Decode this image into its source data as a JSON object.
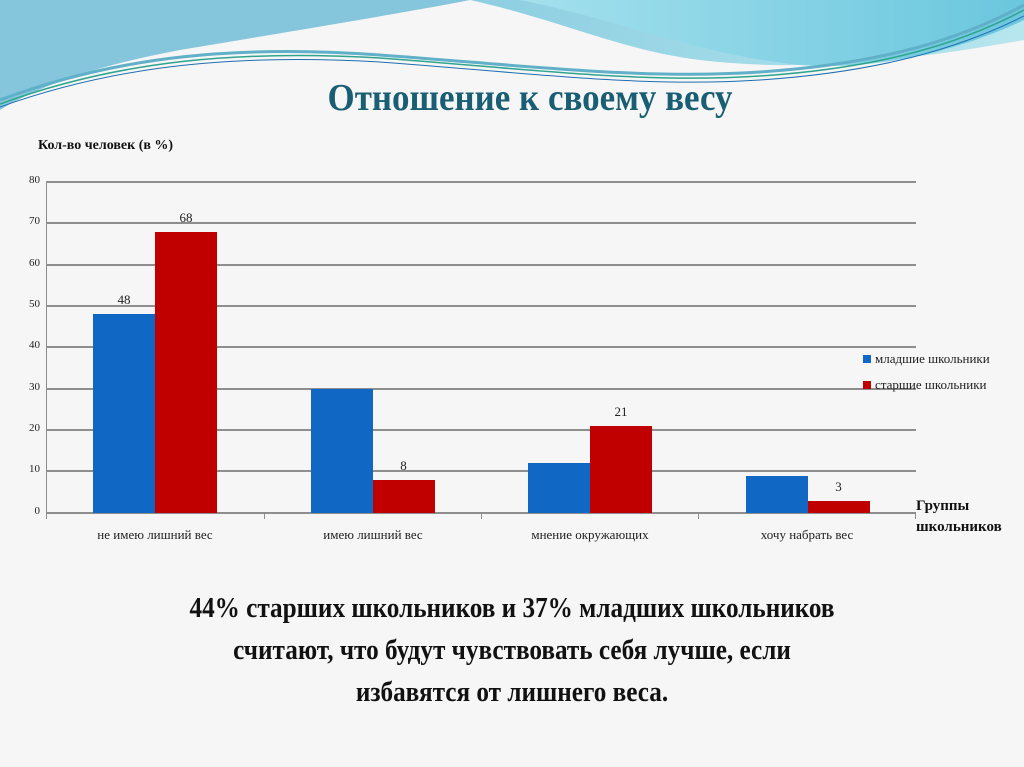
{
  "slide": {
    "title": "Отношение к своему весу",
    "caption_lines": [
      "44% старших школьников и 37% младших школьников",
      "считают, что будут чувствовать себя лучше, если",
      "избавятся от лишнего веса."
    ]
  },
  "colors": {
    "title": "#1a5e73",
    "series_junior": "#1068c4",
    "series_senior": "#c00000",
    "grid": "#8e8e8e",
    "banner_light": "#a8dfe8",
    "banner_dark": "#4fb6d0"
  },
  "chart_data": {
    "type": "bar",
    "title": "Отношение к своему весу",
    "ylabel": "Кол-во человек (в %)",
    "xlabel": "Группы школьников",
    "categories": [
      "не имею лишний вес",
      "имею лишний вес",
      "мнение окружающих",
      "хочу набрать вес"
    ],
    "series": [
      {
        "name": "младшие школьники",
        "values": [
          48,
          30,
          12,
          9
        ],
        "data_labels": [
          "48",
          "",
          "",
          ""
        ]
      },
      {
        "name": "старшие школьники",
        "values": [
          68,
          8,
          21,
          3
        ],
        "data_labels": [
          "68",
          "8",
          "21",
          "3"
        ]
      }
    ],
    "ylim": [
      0,
      80
    ],
    "yticks": [
      "0",
      "10",
      "20",
      "30",
      "40",
      "50",
      "60",
      "70",
      "80"
    ],
    "grid": true,
    "legend_position": "right"
  }
}
